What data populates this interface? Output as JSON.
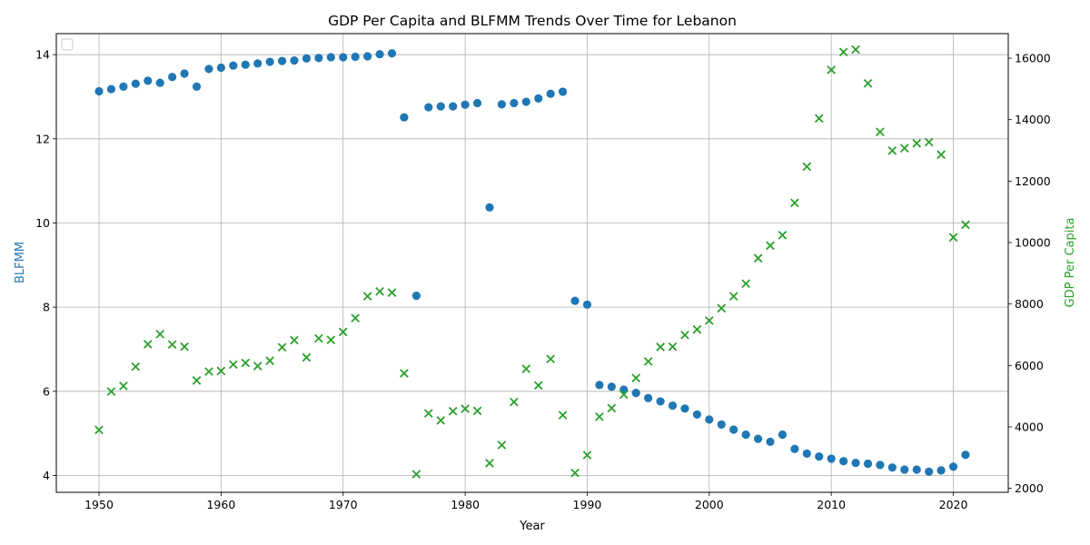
{
  "chart_data": {
    "type": "scatter",
    "title": "GDP Per Capita and BLFMM Trends Over Time for Lebanon",
    "xlabel": "Year",
    "ylabel_left": "BLFMM",
    "ylabel_right": "GDP Per Capita",
    "xlim": [
      1946.5,
      2024.5
    ],
    "ylim_left": [
      3.6,
      14.5
    ],
    "ylim_right": [
      1870,
      16800
    ],
    "x_ticks": [
      1950,
      1960,
      1970,
      1980,
      1990,
      2000,
      2010,
      2020
    ],
    "y_left_ticks": [
      4,
      6,
      8,
      10,
      12,
      14
    ],
    "y_right_ticks": [
      2000,
      4000,
      6000,
      8000,
      10000,
      12000,
      14000,
      16000
    ],
    "grid": true,
    "legend": "top-left (empty)",
    "colors": {
      "blfmm": "#1f77b4",
      "gdp": "#2ca02c"
    },
    "series": [
      {
        "name": "BLFMM",
        "axis": "left",
        "marker": "circle",
        "points": [
          [
            1950,
            13.13
          ],
          [
            1951,
            13.18
          ],
          [
            1952,
            13.24
          ],
          [
            1953,
            13.31
          ],
          [
            1954,
            13.38
          ],
          [
            1955,
            13.33
          ],
          [
            1956,
            13.47
          ],
          [
            1957,
            13.55
          ],
          [
            1958,
            13.24
          ],
          [
            1959,
            13.66
          ],
          [
            1960,
            13.69
          ],
          [
            1961,
            13.74
          ],
          [
            1962,
            13.76
          ],
          [
            1963,
            13.79
          ],
          [
            1964,
            13.83
          ],
          [
            1965,
            13.85
          ],
          [
            1966,
            13.86
          ],
          [
            1967,
            13.91
          ],
          [
            1968,
            13.92
          ],
          [
            1969,
            13.94
          ],
          [
            1970,
            13.94
          ],
          [
            1971,
            13.95
          ],
          [
            1972,
            13.96
          ],
          [
            1973,
            14.01
          ],
          [
            1974,
            14.03
          ],
          [
            1975,
            12.51
          ],
          [
            1976,
            8.27
          ],
          [
            1977,
            12.75
          ],
          [
            1978,
            12.77
          ],
          [
            1979,
            12.77
          ],
          [
            1980,
            12.81
          ],
          [
            1981,
            12.85
          ],
          [
            1982,
            10.37
          ],
          [
            1983,
            12.82
          ],
          [
            1984,
            12.85
          ],
          [
            1985,
            12.88
          ],
          [
            1986,
            12.96
          ],
          [
            1987,
            13.07
          ],
          [
            1988,
            13.12
          ],
          [
            1989,
            8.15
          ],
          [
            1990,
            8.06
          ],
          [
            1991,
            6.15
          ],
          [
            1992,
            6.11
          ],
          [
            1993,
            6.04
          ],
          [
            1994,
            5.96
          ],
          [
            1995,
            5.84
          ],
          [
            1996,
            5.76
          ],
          [
            1997,
            5.66
          ],
          [
            1998,
            5.59
          ],
          [
            1999,
            5.45
          ],
          [
            2000,
            5.33
          ],
          [
            2001,
            5.21
          ],
          [
            2002,
            5.09
          ],
          [
            2003,
            4.97
          ],
          [
            2004,
            4.87
          ],
          [
            2005,
            4.8
          ],
          [
            2006,
            4.97
          ],
          [
            2007,
            4.63
          ],
          [
            2008,
            4.52
          ],
          [
            2009,
            4.45
          ],
          [
            2010,
            4.4
          ],
          [
            2011,
            4.34
          ],
          [
            2012,
            4.3
          ],
          [
            2013,
            4.28
          ],
          [
            2014,
            4.25
          ],
          [
            2015,
            4.19
          ],
          [
            2016,
            4.14
          ],
          [
            2017,
            4.14
          ],
          [
            2018,
            4.09
          ],
          [
            2019,
            4.12
          ],
          [
            2020,
            4.21
          ],
          [
            2021,
            4.49
          ]
        ]
      },
      {
        "name": "GDP Per Capita",
        "axis": "right",
        "marker": "x",
        "points": [
          [
            1950,
            3900
          ],
          [
            1951,
            5150
          ],
          [
            1952,
            5330
          ],
          [
            1953,
            5960
          ],
          [
            1954,
            6690
          ],
          [
            1955,
            7020
          ],
          [
            1956,
            6680
          ],
          [
            1957,
            6610
          ],
          [
            1958,
            5510
          ],
          [
            1959,
            5800
          ],
          [
            1960,
            5820
          ],
          [
            1961,
            6030
          ],
          [
            1962,
            6080
          ],
          [
            1963,
            5980
          ],
          [
            1964,
            6150
          ],
          [
            1965,
            6590
          ],
          [
            1966,
            6820
          ],
          [
            1967,
            6260
          ],
          [
            1968,
            6880
          ],
          [
            1969,
            6830
          ],
          [
            1970,
            7090
          ],
          [
            1971,
            7540
          ],
          [
            1972,
            8250
          ],
          [
            1973,
            8410
          ],
          [
            1974,
            8370
          ],
          [
            1975,
            5740
          ],
          [
            1976,
            2460
          ],
          [
            1977,
            4440
          ],
          [
            1978,
            4210
          ],
          [
            1979,
            4510
          ],
          [
            1980,
            4590
          ],
          [
            1981,
            4520
          ],
          [
            1982,
            2820
          ],
          [
            1983,
            3410
          ],
          [
            1984,
            4810
          ],
          [
            1985,
            5890
          ],
          [
            1986,
            5350
          ],
          [
            1987,
            6210
          ],
          [
            1988,
            4380
          ],
          [
            1989,
            2500
          ],
          [
            1990,
            3080
          ],
          [
            1991,
            4330
          ],
          [
            1992,
            4610
          ],
          [
            1993,
            5050
          ],
          [
            1994,
            5590
          ],
          [
            1995,
            6130
          ],
          [
            1996,
            6600
          ],
          [
            1997,
            6610
          ],
          [
            1998,
            6990
          ],
          [
            1999,
            7170
          ],
          [
            2000,
            7460
          ],
          [
            2001,
            7860
          ],
          [
            2002,
            8250
          ],
          [
            2003,
            8660
          ],
          [
            2004,
            9490
          ],
          [
            2005,
            9900
          ],
          [
            2006,
            10240
          ],
          [
            2007,
            11290
          ],
          [
            2008,
            12470
          ],
          [
            2009,
            14040
          ],
          [
            2010,
            15620
          ],
          [
            2011,
            16200
          ],
          [
            2012,
            16280
          ],
          [
            2013,
            15180
          ],
          [
            2014,
            13600
          ],
          [
            2015,
            12990
          ],
          [
            2016,
            13070
          ],
          [
            2017,
            13230
          ],
          [
            2018,
            13270
          ],
          [
            2019,
            12860
          ],
          [
            2020,
            10170
          ],
          [
            2021,
            10580
          ]
        ]
      }
    ]
  }
}
